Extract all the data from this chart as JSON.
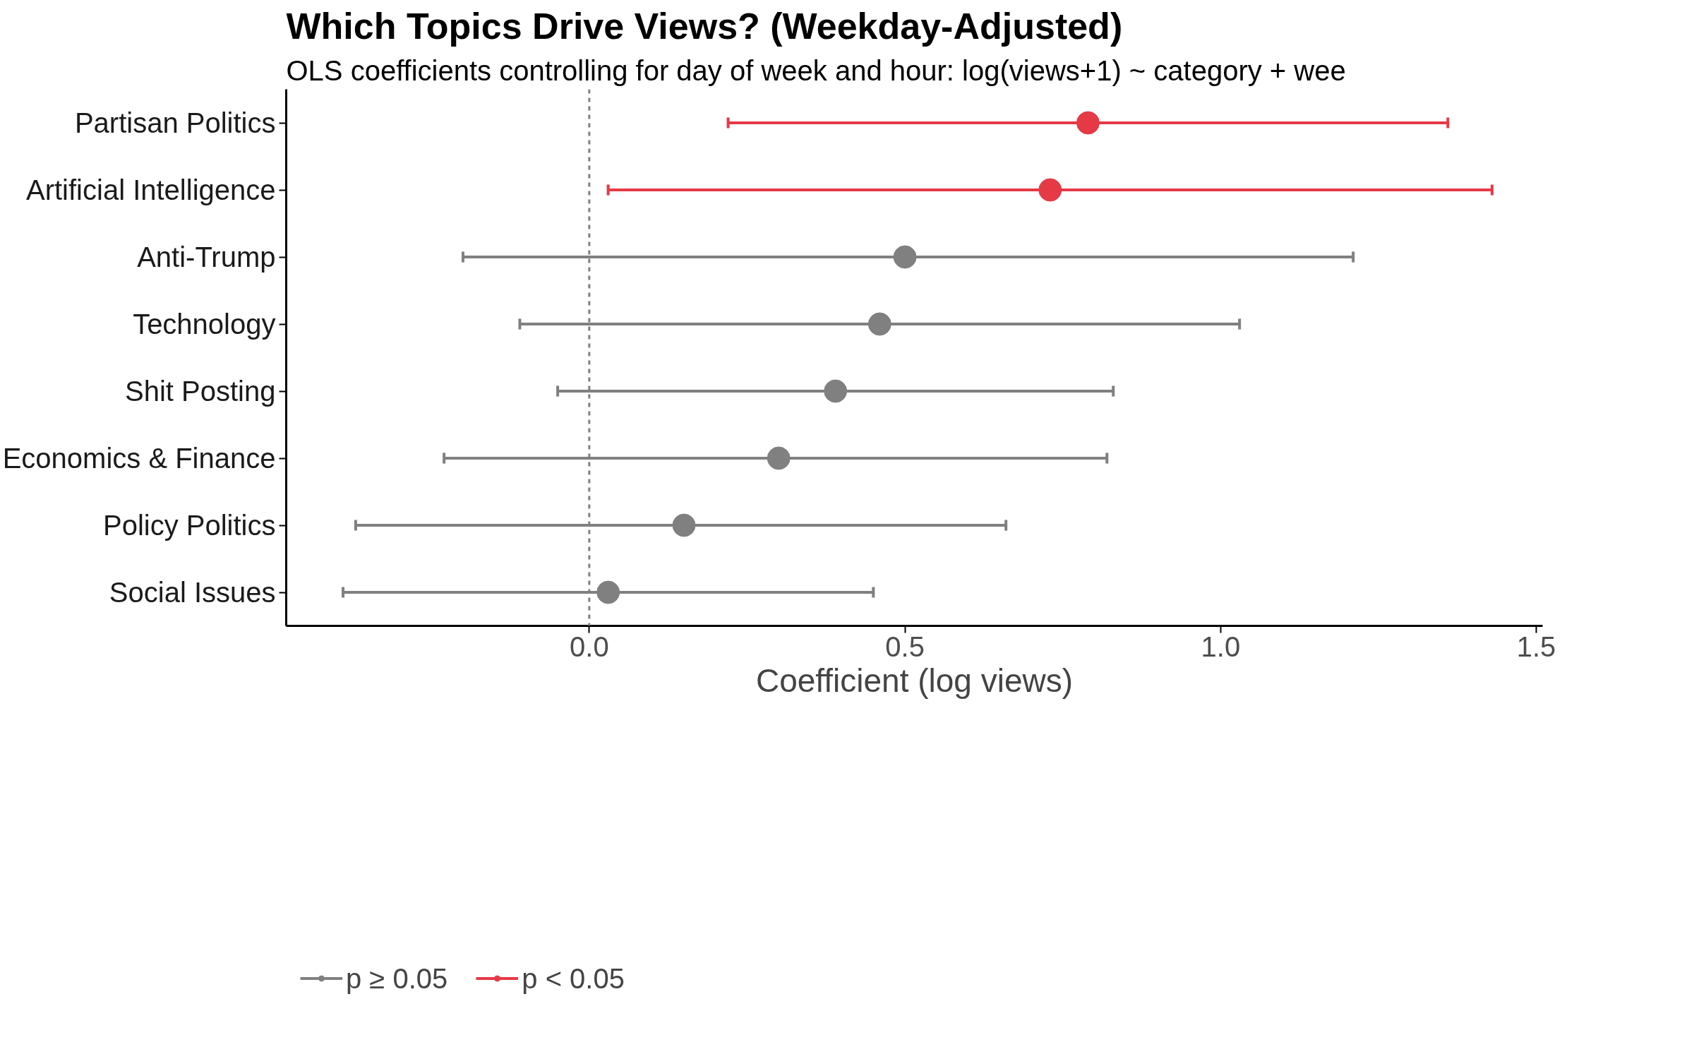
{
  "chart_data": {
    "type": "scatter",
    "orientation": "horizontal",
    "title": "Which Topics Drive Views? (Weekday-Adjusted)",
    "subtitle": "OLS coefficients controlling for day of week and hour: log(views+1) ~ category + wee",
    "xlabel": "Coefficient (log views)",
    "categories": [
      "Partisan Politics",
      "Artificial Intelligence",
      "Anti-Trump",
      "Technology",
      "Shit Posting",
      "Economics & Finance",
      "Policy Politics",
      "Social Issues"
    ],
    "series": [
      {
        "name": "p ≥ 0.05",
        "color": "#808080",
        "values": [
          null,
          null,
          0.5,
          0.46,
          0.39,
          0.3,
          0.15,
          0.03
        ],
        "errors": [
          null,
          null,
          [
            -0.2,
            1.21
          ],
          [
            -0.11,
            1.03
          ],
          [
            -0.05,
            0.83
          ],
          [
            -0.23,
            0.82
          ],
          [
            -0.37,
            0.66
          ],
          [
            -0.39,
            0.45
          ]
        ]
      },
      {
        "name": "p < 0.05",
        "color": "#e63946",
        "values": [
          0.79,
          0.73,
          null,
          null,
          null,
          null,
          null,
          null
        ],
        "errors": [
          [
            0.22,
            1.36
          ],
          [
            0.03,
            1.43
          ],
          null,
          null,
          null,
          null,
          null,
          null
        ]
      }
    ],
    "xlim": [
      -0.48,
      1.51
    ],
    "xticks": [
      {
        "value": 0,
        "label": "0.0"
      },
      0.5,
      {
        "value": 1,
        "label": "1.0"
      },
      1.5
    ],
    "ref_lines": [
      {
        "axis": "x",
        "value": 0,
        "color": "#808080",
        "line_style": "dashed"
      }
    ],
    "marker": "circle",
    "legend": "bottom left",
    "grid": false
  }
}
